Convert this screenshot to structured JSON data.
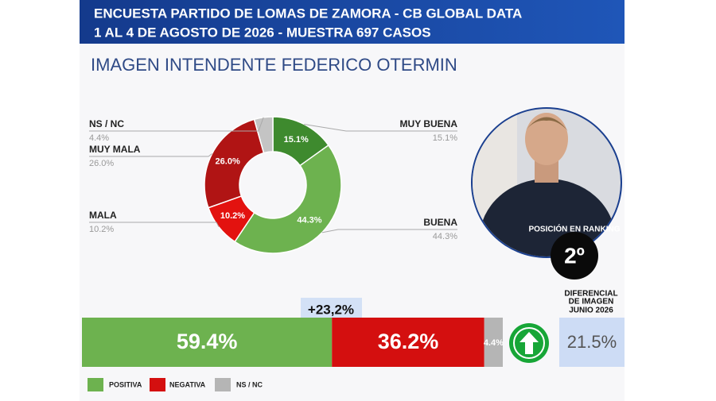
{
  "header": {
    "line1": "ENCUESTA PARTIDO DE LOMAS DE ZAMORA - CB GLOBAL DATA",
    "line2": "1 AL 4 DE AGOSTO DE 2026 - MUESTRA 697 CASOS"
  },
  "chart_data": [
    {
      "type": "donut",
      "title": "IMAGEN INTENDENTE  FEDERICO OTERMIN",
      "categories": [
        "MUY BUENA",
        "BUENA",
        "MALA",
        "MUY MALA",
        "NS / NC"
      ],
      "values": [
        15.1,
        44.3,
        10.2,
        26.0,
        4.4
      ],
      "value_labels": [
        "15.1%",
        "44.3%",
        "10.2%",
        "26.0%",
        "4.4%"
      ],
      "colors": [
        "#3e8a2e",
        "#6db24f",
        "#e3120f",
        "#b01414",
        "#c4c4c4"
      ]
    },
    {
      "type": "stacked_bar",
      "annotation": "+23,2%",
      "xlim": [
        0,
        100
      ],
      "series": [
        {
          "name": "POSITIVA",
          "color": "#6db24f",
          "values": [
            59.4
          ],
          "value_labels": [
            "59.4%"
          ]
        },
        {
          "name": "NEGATIVA",
          "color": "#d40f0f",
          "values": [
            36.2
          ],
          "value_labels": [
            "36.2%"
          ]
        },
        {
          "name": "NS / NC",
          "color": "#b5b5b5",
          "values": [
            4.4
          ],
          "value_labels": [
            "4.4%"
          ]
        }
      ]
    }
  ],
  "ranking": {
    "label": "POSICIÓN EN RANKING",
    "value": "2º"
  },
  "differential": {
    "label": [
      "DIFERENCIAL",
      "DE IMAGEN",
      "JUNIO 2026"
    ],
    "value": "21.5%"
  }
}
